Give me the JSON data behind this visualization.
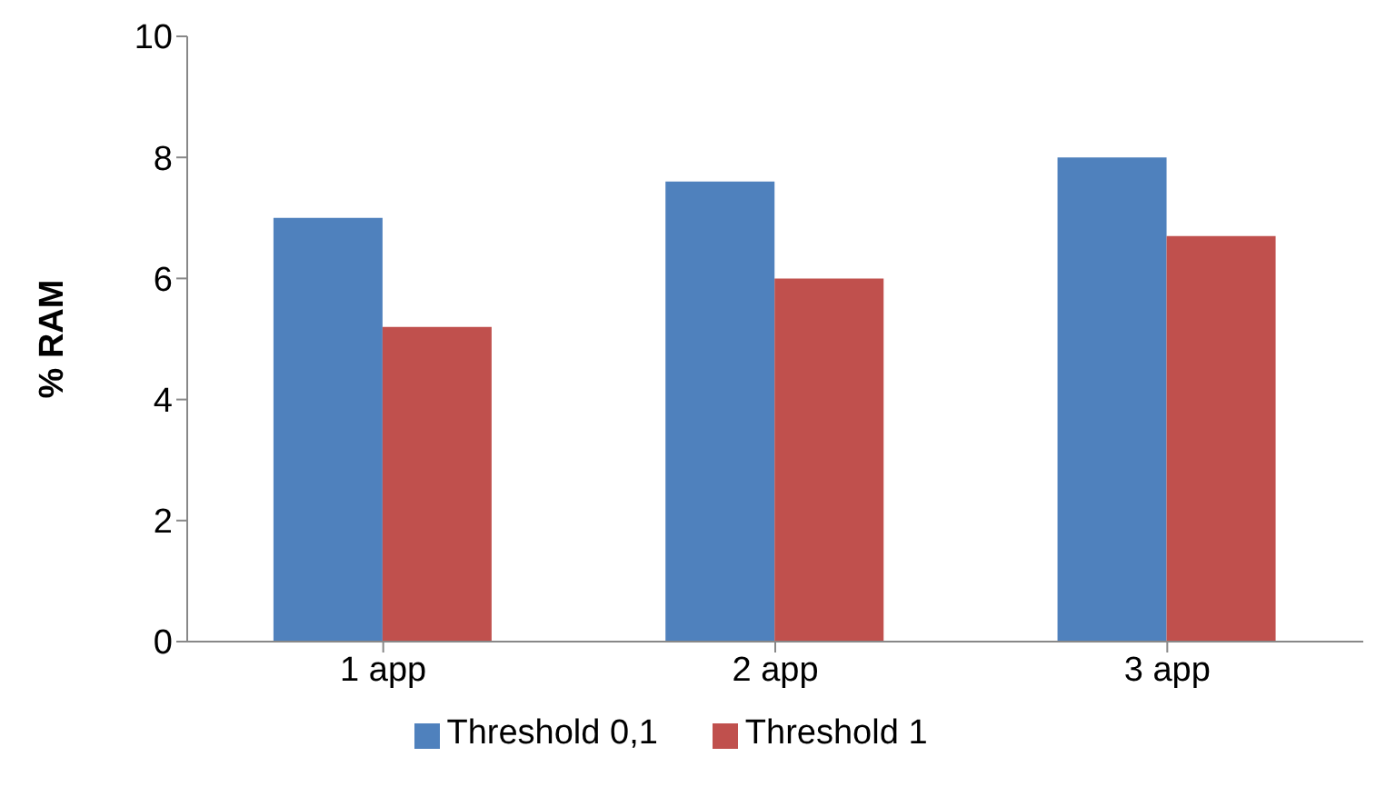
{
  "chart_data": {
    "type": "bar",
    "ylabel": "% RAM",
    "categories": [
      "1 app",
      "2 app",
      "3 app"
    ],
    "series": [
      {
        "name": "Threshold 0,1",
        "color": "#4f81bd",
        "values": [
          7.0,
          7.6,
          8.0
        ]
      },
      {
        "name": "Threshold 1",
        "color": "#c0504d",
        "values": [
          5.2,
          6.0,
          6.7
        ]
      }
    ],
    "ylim": [
      0,
      10
    ],
    "yticks": [
      0,
      2,
      4,
      6,
      8,
      10
    ],
    "grid": false,
    "legend": "bottom"
  }
}
